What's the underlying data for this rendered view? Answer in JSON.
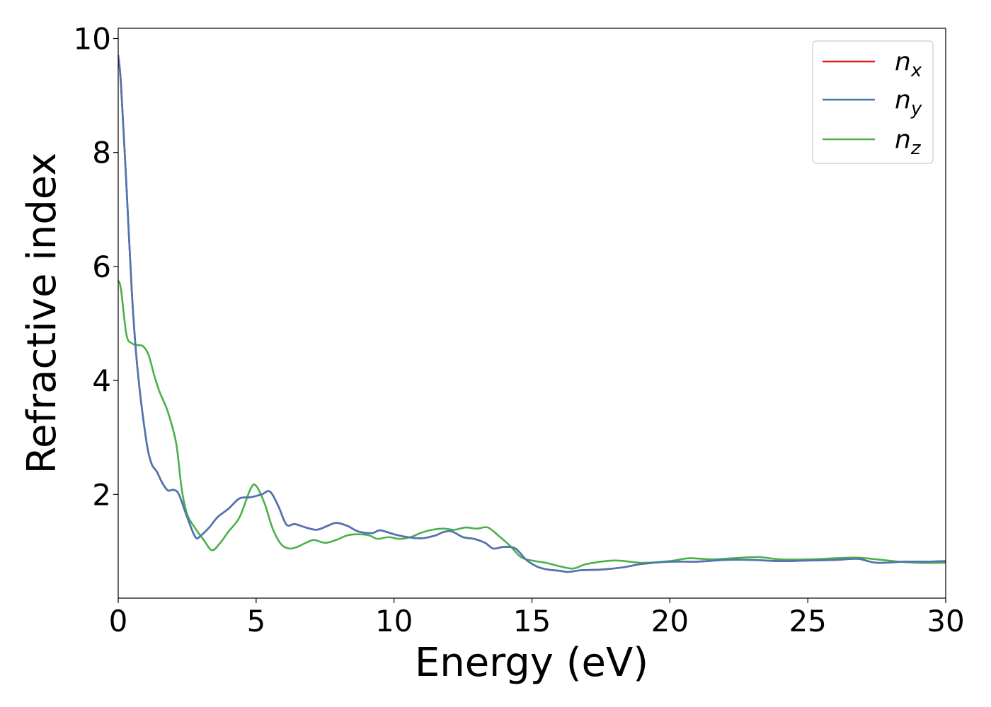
{
  "chart_data": {
    "type": "line",
    "title": "",
    "xlabel": "Energy (eV)",
    "ylabel": "Refractive index",
    "xlim": [
      0,
      30
    ],
    "ylim": [
      0.18,
      10.18
    ],
    "x_ticks": [
      0,
      5,
      10,
      15,
      20,
      25,
      30
    ],
    "y_ticks": [
      2,
      4,
      6,
      8,
      10
    ],
    "x_tick_labels": [
      "0",
      "5",
      "10",
      "15",
      "20",
      "25",
      "30"
    ],
    "y_tick_labels": [
      "2",
      "4",
      "6",
      "8",
      "10"
    ],
    "grid": false,
    "legend_position": "top-right",
    "series": [
      {
        "name": "n_x",
        "legend_base": "n",
        "legend_sub": "x",
        "color": "#e41a1c",
        "x": [
          0,
          0.1,
          0.3,
          0.5,
          0.7,
          1.0,
          1.2,
          1.4,
          1.6,
          1.8,
          2.0,
          2.2,
          2.5,
          2.8,
          3.0,
          3.3,
          3.6,
          4.0,
          4.4,
          4.8,
          5.2,
          5.5,
          5.8,
          6.1,
          6.4,
          6.8,
          7.2,
          7.6,
          7.9,
          8.3,
          8.7,
          9.2,
          9.5,
          10.0,
          10.5,
          11.0,
          11.5,
          11.8,
          12.1,
          12.5,
          12.9,
          13.3,
          13.6,
          14.0,
          14.4,
          14.8,
          15.2,
          15.6,
          16.0,
          16.3,
          16.8,
          17.5,
          18.3,
          19.0,
          20.0,
          21.0,
          22.0,
          23.0,
          24.0,
          25.0,
          26.0,
          26.8,
          27.5,
          28.5,
          29.3,
          30.0
        ],
        "values": [
          9.7,
          9.2,
          7.4,
          5.5,
          4.2,
          3.0,
          2.55,
          2.4,
          2.2,
          2.07,
          2.08,
          2.0,
          1.6,
          1.25,
          1.28,
          1.42,
          1.6,
          1.75,
          1.93,
          1.95,
          2.0,
          2.05,
          1.8,
          1.47,
          1.48,
          1.42,
          1.38,
          1.45,
          1.5,
          1.45,
          1.35,
          1.32,
          1.37,
          1.3,
          1.25,
          1.23,
          1.28,
          1.34,
          1.35,
          1.25,
          1.22,
          1.15,
          1.05,
          1.08,
          1.05,
          0.85,
          0.73,
          0.68,
          0.66,
          0.64,
          0.67,
          0.68,
          0.72,
          0.78,
          0.82,
          0.82,
          0.85,
          0.85,
          0.83,
          0.84,
          0.85,
          0.87,
          0.8,
          0.82,
          0.82,
          0.83
        ]
      },
      {
        "name": "n_y",
        "legend_base": "n",
        "legend_sub": "y",
        "color": "#4a76b5",
        "x": [
          0,
          0.1,
          0.3,
          0.5,
          0.7,
          1.0,
          1.2,
          1.4,
          1.6,
          1.8,
          2.0,
          2.2,
          2.5,
          2.8,
          3.0,
          3.3,
          3.6,
          4.0,
          4.4,
          4.8,
          5.2,
          5.5,
          5.8,
          6.1,
          6.4,
          6.8,
          7.2,
          7.6,
          7.9,
          8.3,
          8.7,
          9.2,
          9.5,
          10.0,
          10.5,
          11.0,
          11.5,
          11.8,
          12.1,
          12.5,
          12.9,
          13.3,
          13.6,
          14.0,
          14.4,
          14.8,
          15.2,
          15.6,
          16.0,
          16.3,
          16.8,
          17.5,
          18.3,
          19.0,
          20.0,
          21.0,
          22.0,
          23.0,
          24.0,
          25.0,
          26.0,
          26.8,
          27.5,
          28.5,
          29.3,
          30.0
        ],
        "values": [
          9.7,
          9.2,
          7.4,
          5.5,
          4.2,
          3.0,
          2.55,
          2.4,
          2.2,
          2.07,
          2.08,
          2.0,
          1.6,
          1.25,
          1.28,
          1.42,
          1.6,
          1.75,
          1.93,
          1.95,
          2.0,
          2.05,
          1.8,
          1.47,
          1.48,
          1.42,
          1.38,
          1.45,
          1.5,
          1.45,
          1.35,
          1.32,
          1.37,
          1.3,
          1.25,
          1.23,
          1.28,
          1.34,
          1.35,
          1.25,
          1.22,
          1.15,
          1.05,
          1.08,
          1.05,
          0.85,
          0.73,
          0.68,
          0.66,
          0.64,
          0.67,
          0.68,
          0.72,
          0.78,
          0.82,
          0.82,
          0.85,
          0.85,
          0.83,
          0.84,
          0.85,
          0.87,
          0.8,
          0.82,
          0.82,
          0.83
        ]
      },
      {
        "name": "n_z",
        "legend_base": "n",
        "legend_sub": "z",
        "color": "#4daf4a",
        "x": [
          0,
          0.1,
          0.3,
          0.5,
          0.7,
          0.9,
          1.1,
          1.3,
          1.5,
          1.8,
          2.1,
          2.3,
          2.5,
          2.8,
          3.1,
          3.4,
          3.7,
          4.0,
          4.4,
          4.8,
          5.0,
          5.3,
          5.6,
          5.9,
          6.2,
          6.5,
          6.8,
          7.1,
          7.5,
          7.9,
          8.3,
          8.7,
          9.1,
          9.4,
          9.8,
          10.2,
          10.6,
          11.0,
          11.4,
          11.8,
          12.2,
          12.6,
          13.0,
          13.4,
          13.8,
          14.2,
          14.6,
          15.0,
          15.5,
          16.0,
          16.5,
          17.0,
          18.0,
          19.0,
          20.0,
          20.7,
          21.5,
          22.3,
          23.2,
          24.0,
          25.0,
          26.0,
          26.8,
          27.5,
          28.3,
          29.0,
          30.0
        ],
        "values": [
          5.75,
          5.6,
          4.8,
          4.65,
          4.62,
          4.6,
          4.45,
          4.1,
          3.8,
          3.45,
          2.9,
          2.1,
          1.65,
          1.4,
          1.2,
          1.02,
          1.15,
          1.35,
          1.6,
          2.1,
          2.15,
          1.85,
          1.4,
          1.13,
          1.05,
          1.08,
          1.15,
          1.2,
          1.15,
          1.2,
          1.28,
          1.3,
          1.28,
          1.22,
          1.25,
          1.22,
          1.25,
          1.33,
          1.38,
          1.4,
          1.38,
          1.42,
          1.4,
          1.42,
          1.27,
          1.1,
          0.9,
          0.84,
          0.8,
          0.74,
          0.7,
          0.78,
          0.84,
          0.8,
          0.83,
          0.88,
          0.86,
          0.88,
          0.9,
          0.86,
          0.86,
          0.88,
          0.89,
          0.86,
          0.82,
          0.8,
          0.8
        ]
      }
    ]
  }
}
